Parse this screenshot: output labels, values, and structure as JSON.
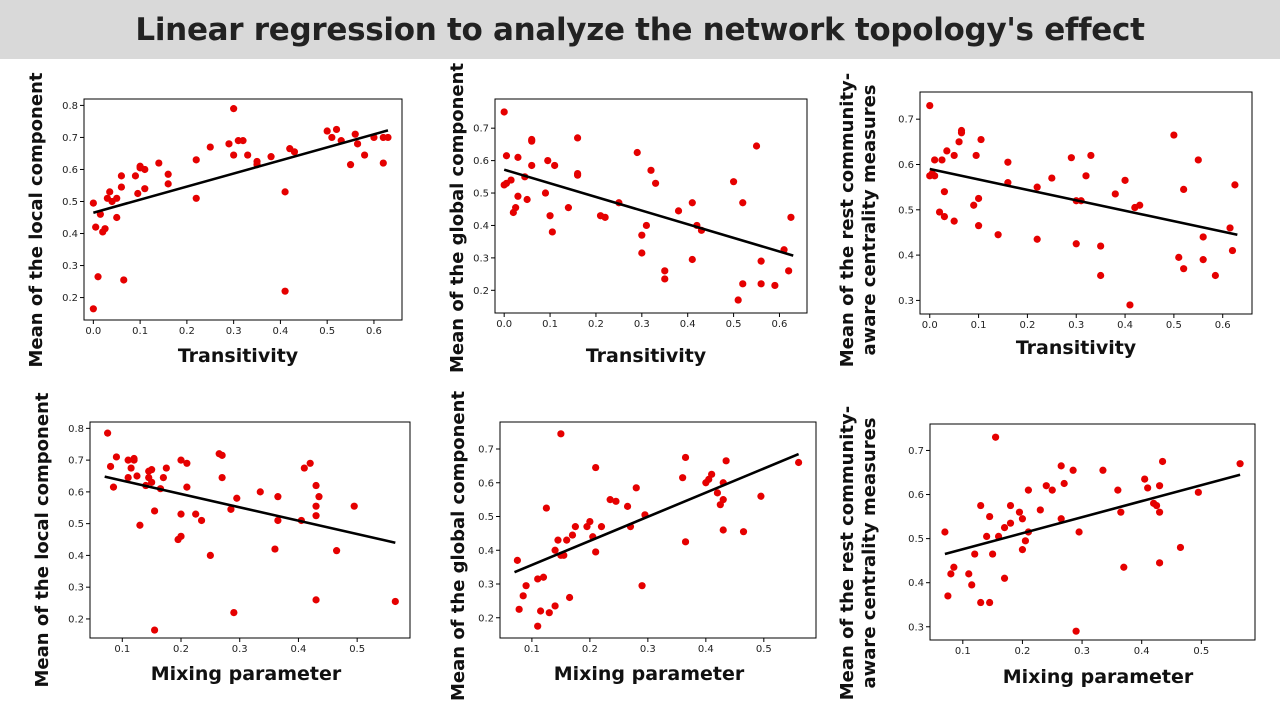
{
  "page": {
    "title": "Linear regression to analyze the network topology's effect"
  },
  "colors": {
    "point": "#e50000",
    "fit_line": "#000000",
    "title_bar": "#d9d9d9"
  },
  "chart_data": [
    {
      "id": "transitivity-local",
      "type": "scatter",
      "xlabel": "Transitivity",
      "ylabel": [
        "Mean of the local component"
      ],
      "xlim": [
        -0.02,
        0.66
      ],
      "ylim": [
        0.13,
        0.82
      ],
      "xticks": [
        0.0,
        0.1,
        0.2,
        0.3,
        0.4,
        0.5,
        0.6
      ],
      "yticks": [
        0.2,
        0.3,
        0.4,
        0.5,
        0.6,
        0.7,
        0.8
      ],
      "fit": [
        [
          0.0,
          0.465
        ],
        [
          0.63,
          0.722
        ]
      ],
      "points": [
        [
          0.0,
          0.495
        ],
        [
          0.0,
          0.165
        ],
        [
          0.005,
          0.42
        ],
        [
          0.01,
          0.265
        ],
        [
          0.015,
          0.46
        ],
        [
          0.02,
          0.405
        ],
        [
          0.025,
          0.415
        ],
        [
          0.03,
          0.51
        ],
        [
          0.035,
          0.53
        ],
        [
          0.04,
          0.5
        ],
        [
          0.05,
          0.51
        ],
        [
          0.05,
          0.45
        ],
        [
          0.06,
          0.545
        ],
        [
          0.06,
          0.58
        ],
        [
          0.065,
          0.255
        ],
        [
          0.09,
          0.58
        ],
        [
          0.095,
          0.525
        ],
        [
          0.1,
          0.605
        ],
        [
          0.1,
          0.61
        ],
        [
          0.11,
          0.54
        ],
        [
          0.11,
          0.6
        ],
        [
          0.14,
          0.62
        ],
        [
          0.16,
          0.555
        ],
        [
          0.16,
          0.585
        ],
        [
          0.22,
          0.51
        ],
        [
          0.22,
          0.63
        ],
        [
          0.25,
          0.67
        ],
        [
          0.29,
          0.68
        ],
        [
          0.3,
          0.645
        ],
        [
          0.3,
          0.79
        ],
        [
          0.31,
          0.69
        ],
        [
          0.32,
          0.69
        ],
        [
          0.33,
          0.645
        ],
        [
          0.35,
          0.625
        ],
        [
          0.35,
          0.615
        ],
        [
          0.38,
          0.64
        ],
        [
          0.41,
          0.53
        ],
        [
          0.41,
          0.22
        ],
        [
          0.42,
          0.665
        ],
        [
          0.43,
          0.655
        ],
        [
          0.5,
          0.72
        ],
        [
          0.51,
          0.7
        ],
        [
          0.52,
          0.725
        ],
        [
          0.53,
          0.69
        ],
        [
          0.55,
          0.615
        ],
        [
          0.56,
          0.71
        ],
        [
          0.565,
          0.68
        ],
        [
          0.58,
          0.645
        ],
        [
          0.6,
          0.7
        ],
        [
          0.62,
          0.7
        ],
        [
          0.62,
          0.62
        ],
        [
          0.63,
          0.7
        ]
      ]
    },
    {
      "id": "transitivity-global",
      "type": "scatter",
      "xlabel": "Transitivity",
      "ylabel": [
        "Mean of the global component"
      ],
      "xlim": [
        -0.02,
        0.66
      ],
      "ylim": [
        0.13,
        0.79
      ],
      "xticks": [
        0.0,
        0.1,
        0.2,
        0.3,
        0.4,
        0.5,
        0.6
      ],
      "yticks": [
        0.2,
        0.3,
        0.4,
        0.5,
        0.6,
        0.7
      ],
      "fit": [
        [
          0.0,
          0.572
        ],
        [
          0.63,
          0.307
        ]
      ],
      "points": [
        [
          0.0,
          0.75
        ],
        [
          0.0,
          0.525
        ],
        [
          0.005,
          0.615
        ],
        [
          0.005,
          0.53
        ],
        [
          0.015,
          0.54
        ],
        [
          0.02,
          0.44
        ],
        [
          0.025,
          0.455
        ],
        [
          0.03,
          0.61
        ],
        [
          0.03,
          0.49
        ],
        [
          0.045,
          0.55
        ],
        [
          0.05,
          0.48
        ],
        [
          0.06,
          0.585
        ],
        [
          0.06,
          0.66
        ],
        [
          0.06,
          0.665
        ],
        [
          0.09,
          0.5
        ],
        [
          0.095,
          0.6
        ],
        [
          0.1,
          0.43
        ],
        [
          0.105,
          0.38
        ],
        [
          0.11,
          0.585
        ],
        [
          0.14,
          0.455
        ],
        [
          0.16,
          0.555
        ],
        [
          0.16,
          0.56
        ],
        [
          0.16,
          0.67
        ],
        [
          0.21,
          0.43
        ],
        [
          0.22,
          0.425
        ],
        [
          0.25,
          0.47
        ],
        [
          0.29,
          0.625
        ],
        [
          0.3,
          0.315
        ],
        [
          0.3,
          0.37
        ],
        [
          0.31,
          0.4
        ],
        [
          0.32,
          0.57
        ],
        [
          0.33,
          0.53
        ],
        [
          0.35,
          0.26
        ],
        [
          0.35,
          0.235
        ],
        [
          0.38,
          0.445
        ],
        [
          0.41,
          0.295
        ],
        [
          0.41,
          0.47
        ],
        [
          0.42,
          0.4
        ],
        [
          0.43,
          0.385
        ],
        [
          0.5,
          0.535
        ],
        [
          0.51,
          0.17
        ],
        [
          0.52,
          0.47
        ],
        [
          0.52,
          0.22
        ],
        [
          0.55,
          0.645
        ],
        [
          0.56,
          0.29
        ],
        [
          0.56,
          0.22
        ],
        [
          0.59,
          0.215
        ],
        [
          0.61,
          0.325
        ],
        [
          0.62,
          0.26
        ],
        [
          0.625,
          0.425
        ]
      ]
    },
    {
      "id": "transitivity-rest",
      "type": "scatter",
      "xlabel": "Transitivity",
      "ylabel": [
        "Mean of the rest community-",
        "aware centrality measures"
      ],
      "xlim": [
        -0.02,
        0.66
      ],
      "ylim": [
        0.27,
        0.76
      ],
      "xticks": [
        0.0,
        0.1,
        0.2,
        0.3,
        0.4,
        0.5,
        0.6
      ],
      "yticks": [
        0.3,
        0.4,
        0.5,
        0.6,
        0.7
      ],
      "fit": [
        [
          0.0,
          0.59
        ],
        [
          0.63,
          0.445
        ]
      ],
      "points": [
        [
          0.0,
          0.73
        ],
        [
          0.0,
          0.575
        ],
        [
          0.005,
          0.58
        ],
        [
          0.01,
          0.61
        ],
        [
          0.01,
          0.575
        ],
        [
          0.02,
          0.495
        ],
        [
          0.025,
          0.61
        ],
        [
          0.03,
          0.485
        ],
        [
          0.03,
          0.54
        ],
        [
          0.035,
          0.63
        ],
        [
          0.05,
          0.475
        ],
        [
          0.05,
          0.62
        ],
        [
          0.06,
          0.65
        ],
        [
          0.065,
          0.67
        ],
        [
          0.065,
          0.675
        ],
        [
          0.09,
          0.51
        ],
        [
          0.095,
          0.62
        ],
        [
          0.1,
          0.525
        ],
        [
          0.1,
          0.465
        ],
        [
          0.105,
          0.655
        ],
        [
          0.14,
          0.445
        ],
        [
          0.16,
          0.56
        ],
        [
          0.16,
          0.605
        ],
        [
          0.22,
          0.55
        ],
        [
          0.22,
          0.435
        ],
        [
          0.25,
          0.57
        ],
        [
          0.29,
          0.615
        ],
        [
          0.3,
          0.52
        ],
        [
          0.3,
          0.425
        ],
        [
          0.31,
          0.52
        ],
        [
          0.32,
          0.575
        ],
        [
          0.33,
          0.62
        ],
        [
          0.35,
          0.355
        ],
        [
          0.35,
          0.42
        ],
        [
          0.38,
          0.535
        ],
        [
          0.4,
          0.565
        ],
        [
          0.41,
          0.29
        ],
        [
          0.42,
          0.505
        ],
        [
          0.43,
          0.51
        ],
        [
          0.5,
          0.665
        ],
        [
          0.51,
          0.395
        ],
        [
          0.52,
          0.37
        ],
        [
          0.52,
          0.545
        ],
        [
          0.55,
          0.61
        ],
        [
          0.56,
          0.44
        ],
        [
          0.56,
          0.39
        ],
        [
          0.585,
          0.355
        ],
        [
          0.615,
          0.46
        ],
        [
          0.62,
          0.41
        ],
        [
          0.625,
          0.555
        ]
      ]
    },
    {
      "id": "mixing-local",
      "type": "scatter",
      "xlabel": "Mixing parameter",
      "ylabel": [
        "Mean of the local component"
      ],
      "xlim": [
        0.045,
        0.59
      ],
      "ylim": [
        0.14,
        0.82
      ],
      "xticks": [
        0.1,
        0.2,
        0.3,
        0.4,
        0.5
      ],
      "yticks": [
        0.2,
        0.3,
        0.4,
        0.5,
        0.6,
        0.7,
        0.8
      ],
      "fit": [
        [
          0.07,
          0.648
        ],
        [
          0.565,
          0.44
        ]
      ],
      "points": [
        [
          0.075,
          0.785
        ],
        [
          0.08,
          0.68
        ],
        [
          0.085,
          0.615
        ],
        [
          0.09,
          0.71
        ],
        [
          0.11,
          0.645
        ],
        [
          0.11,
          0.7
        ],
        [
          0.115,
          0.675
        ],
        [
          0.12,
          0.7
        ],
        [
          0.12,
          0.705
        ],
        [
          0.125,
          0.65
        ],
        [
          0.13,
          0.495
        ],
        [
          0.14,
          0.62
        ],
        [
          0.145,
          0.645
        ],
        [
          0.145,
          0.665
        ],
        [
          0.15,
          0.63
        ],
        [
          0.15,
          0.67
        ],
        [
          0.155,
          0.54
        ],
        [
          0.155,
          0.165
        ],
        [
          0.165,
          0.61
        ],
        [
          0.17,
          0.645
        ],
        [
          0.175,
          0.675
        ],
        [
          0.195,
          0.45
        ],
        [
          0.2,
          0.53
        ],
        [
          0.2,
          0.46
        ],
        [
          0.2,
          0.7
        ],
        [
          0.21,
          0.69
        ],
        [
          0.21,
          0.615
        ],
        [
          0.225,
          0.53
        ],
        [
          0.235,
          0.51
        ],
        [
          0.25,
          0.4
        ],
        [
          0.265,
          0.72
        ],
        [
          0.27,
          0.645
        ],
        [
          0.27,
          0.715
        ],
        [
          0.285,
          0.545
        ],
        [
          0.29,
          0.22
        ],
        [
          0.295,
          0.58
        ],
        [
          0.335,
          0.6
        ],
        [
          0.36,
          0.42
        ],
        [
          0.365,
          0.585
        ],
        [
          0.365,
          0.51
        ],
        [
          0.405,
          0.51
        ],
        [
          0.41,
          0.675
        ],
        [
          0.42,
          0.69
        ],
        [
          0.43,
          0.525
        ],
        [
          0.43,
          0.26
        ],
        [
          0.43,
          0.62
        ],
        [
          0.43,
          0.555
        ],
        [
          0.435,
          0.585
        ],
        [
          0.465,
          0.415
        ],
        [
          0.495,
          0.555
        ],
        [
          0.565,
          0.255
        ]
      ]
    },
    {
      "id": "mixing-global",
      "type": "scatter",
      "xlabel": "Mixing parameter",
      "ylabel": [
        "Mean of the global component"
      ],
      "xlim": [
        0.045,
        0.59
      ],
      "ylim": [
        0.14,
        0.78
      ],
      "xticks": [
        0.1,
        0.2,
        0.3,
        0.4,
        0.5
      ],
      "yticks": [
        0.2,
        0.3,
        0.4,
        0.5,
        0.6,
        0.7
      ],
      "fit": [
        [
          0.07,
          0.335
        ],
        [
          0.56,
          0.685
        ]
      ],
      "points": [
        [
          0.075,
          0.37
        ],
        [
          0.078,
          0.225
        ],
        [
          0.085,
          0.265
        ],
        [
          0.09,
          0.295
        ],
        [
          0.11,
          0.315
        ],
        [
          0.11,
          0.175
        ],
        [
          0.115,
          0.22
        ],
        [
          0.12,
          0.32
        ],
        [
          0.125,
          0.525
        ],
        [
          0.13,
          0.215
        ],
        [
          0.14,
          0.235
        ],
        [
          0.14,
          0.4
        ],
        [
          0.145,
          0.43
        ],
        [
          0.15,
          0.385
        ],
        [
          0.15,
          0.745
        ],
        [
          0.155,
          0.385
        ],
        [
          0.16,
          0.43
        ],
        [
          0.165,
          0.26
        ],
        [
          0.17,
          0.445
        ],
        [
          0.175,
          0.47
        ],
        [
          0.195,
          0.47
        ],
        [
          0.2,
          0.485
        ],
        [
          0.205,
          0.44
        ],
        [
          0.21,
          0.645
        ],
        [
          0.21,
          0.395
        ],
        [
          0.22,
          0.47
        ],
        [
          0.235,
          0.55
        ],
        [
          0.245,
          0.545
        ],
        [
          0.265,
          0.53
        ],
        [
          0.27,
          0.47
        ],
        [
          0.28,
          0.585
        ],
        [
          0.29,
          0.295
        ],
        [
          0.295,
          0.505
        ],
        [
          0.36,
          0.615
        ],
        [
          0.365,
          0.675
        ],
        [
          0.365,
          0.425
        ],
        [
          0.4,
          0.6
        ],
        [
          0.405,
          0.61
        ],
        [
          0.41,
          0.625
        ],
        [
          0.42,
          0.57
        ],
        [
          0.425,
          0.535
        ],
        [
          0.43,
          0.55
        ],
        [
          0.43,
          0.46
        ],
        [
          0.43,
          0.6
        ],
        [
          0.435,
          0.665
        ],
        [
          0.465,
          0.455
        ],
        [
          0.495,
          0.56
        ],
        [
          0.56,
          0.66
        ]
      ]
    },
    {
      "id": "mixing-rest",
      "type": "scatter",
      "xlabel": "Mixing parameter",
      "ylabel": [
        "Mean of the rest community-",
        "aware centrality measures"
      ],
      "xlim": [
        0.045,
        0.59
      ],
      "ylim": [
        0.27,
        0.76
      ],
      "xticks": [
        0.1,
        0.2,
        0.3,
        0.4,
        0.5
      ],
      "yticks": [
        0.3,
        0.4,
        0.5,
        0.6,
        0.7
      ],
      "fit": [
        [
          0.07,
          0.465
        ],
        [
          0.565,
          0.645
        ]
      ],
      "points": [
        [
          0.07,
          0.515
        ],
        [
          0.075,
          0.37
        ],
        [
          0.08,
          0.42
        ],
        [
          0.085,
          0.435
        ],
        [
          0.11,
          0.42
        ],
        [
          0.115,
          0.395
        ],
        [
          0.12,
          0.465
        ],
        [
          0.13,
          0.575
        ],
        [
          0.13,
          0.355
        ],
        [
          0.14,
          0.505
        ],
        [
          0.145,
          0.55
        ],
        [
          0.145,
          0.355
        ],
        [
          0.15,
          0.465
        ],
        [
          0.155,
          0.73
        ],
        [
          0.16,
          0.505
        ],
        [
          0.17,
          0.525
        ],
        [
          0.17,
          0.41
        ],
        [
          0.18,
          0.535
        ],
        [
          0.18,
          0.575
        ],
        [
          0.195,
          0.56
        ],
        [
          0.2,
          0.475
        ],
        [
          0.2,
          0.545
        ],
        [
          0.205,
          0.495
        ],
        [
          0.21,
          0.515
        ],
        [
          0.21,
          0.61
        ],
        [
          0.23,
          0.565
        ],
        [
          0.24,
          0.62
        ],
        [
          0.25,
          0.61
        ],
        [
          0.265,
          0.545
        ],
        [
          0.265,
          0.665
        ],
        [
          0.27,
          0.625
        ],
        [
          0.285,
          0.655
        ],
        [
          0.29,
          0.29
        ],
        [
          0.295,
          0.515
        ],
        [
          0.335,
          0.655
        ],
        [
          0.36,
          0.61
        ],
        [
          0.365,
          0.56
        ],
        [
          0.37,
          0.435
        ],
        [
          0.405,
          0.635
        ],
        [
          0.41,
          0.615
        ],
        [
          0.42,
          0.58
        ],
        [
          0.425,
          0.575
        ],
        [
          0.43,
          0.56
        ],
        [
          0.43,
          0.445
        ],
        [
          0.43,
          0.62
        ],
        [
          0.435,
          0.675
        ],
        [
          0.465,
          0.48
        ],
        [
          0.495,
          0.605
        ],
        [
          0.565,
          0.67
        ]
      ]
    }
  ]
}
